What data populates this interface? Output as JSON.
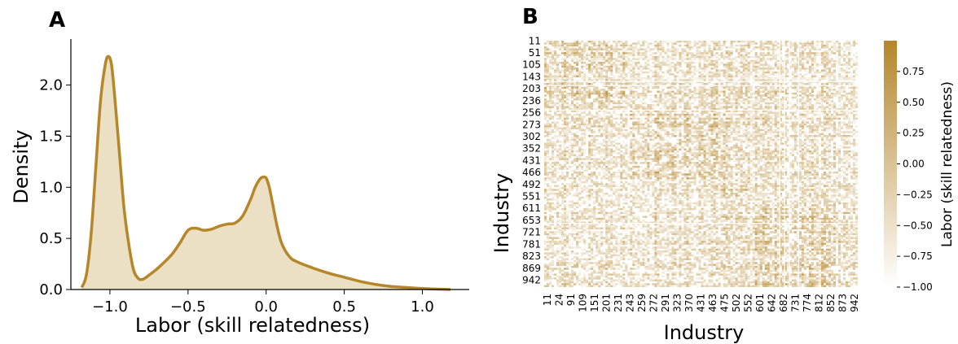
{
  "panels": {
    "a_label": "A",
    "b_label": "B"
  },
  "colors": {
    "accent": "#B5862A",
    "fill": "#EBDFC4",
    "cmap_low": "#FFFFFF",
    "cmap_high": "#B5862A"
  },
  "chart_data": [
    {
      "type": "area",
      "xlabel": "Labor (skill relatedness)",
      "ylabel": "Density",
      "xlim": [
        -1.25,
        1.3
      ],
      "ylim": [
        0,
        2.45
      ],
      "xticks": [
        {
          "value": -1.0,
          "label": "−1.0"
        },
        {
          "value": -0.5,
          "label": "−0.5"
        },
        {
          "value": 0.0,
          "label": "0.0"
        },
        {
          "value": 0.5,
          "label": "0.5"
        },
        {
          "value": 1.0,
          "label": "1.0"
        }
      ],
      "yticks": [
        {
          "value": 0.0,
          "label": "0.0"
        },
        {
          "value": 0.5,
          "label": "0.5"
        },
        {
          "value": 1.0,
          "label": "1.0"
        },
        {
          "value": 1.5,
          "label": "1.5"
        },
        {
          "value": 2.0,
          "label": "2.0"
        }
      ],
      "x": [
        -1.18,
        -1.15,
        -1.12,
        -1.09,
        -1.06,
        -1.03,
        -1.01,
        -0.99,
        -0.97,
        -0.94,
        -0.91,
        -0.88,
        -0.85,
        -0.82,
        -0.79,
        -0.75,
        -0.7,
        -0.65,
        -0.6,
        -0.55,
        -0.5,
        -0.45,
        -0.4,
        -0.35,
        -0.3,
        -0.25,
        -0.2,
        -0.15,
        -0.1,
        -0.07,
        -0.04,
        -0.02,
        0.0,
        0.02,
        0.04,
        0.07,
        0.1,
        0.15,
        0.2,
        0.3,
        0.4,
        0.5,
        0.6,
        0.7,
        0.8,
        0.9,
        1.0,
        1.1,
        1.18
      ],
      "y": [
        0.02,
        0.15,
        0.55,
        1.2,
        1.85,
        2.2,
        2.28,
        2.2,
        1.9,
        1.35,
        0.8,
        0.45,
        0.2,
        0.11,
        0.1,
        0.14,
        0.2,
        0.27,
        0.35,
        0.46,
        0.58,
        0.6,
        0.58,
        0.59,
        0.62,
        0.64,
        0.65,
        0.72,
        0.88,
        1.0,
        1.08,
        1.1,
        1.09,
        1.0,
        0.85,
        0.62,
        0.45,
        0.32,
        0.27,
        0.21,
        0.16,
        0.12,
        0.08,
        0.05,
        0.03,
        0.02,
        0.01,
        0.004,
        0.0
      ]
    },
    {
      "type": "heatmap",
      "xlabel": "Industry",
      "ylabel": "Industry",
      "tick_labels": [
        "11",
        "24",
        "91",
        "109",
        "151",
        "201",
        "231",
        "243",
        "259",
        "272",
        "291",
        "323",
        "370",
        "431",
        "463",
        "475",
        "502",
        "552",
        "601",
        "642",
        "682",
        "731",
        "774",
        "812",
        "852",
        "873",
        "942"
      ],
      "y_tick_labels": [
        "11",
        "51",
        "105",
        "143",
        "203",
        "236",
        "256",
        "273",
        "302",
        "352",
        "431",
        "466",
        "492",
        "551",
        "611",
        "653",
        "721",
        "781",
        "823",
        "869",
        "942"
      ],
      "colorbar": {
        "label": "Labor (skill relatedness)",
        "range": [
          -1.0,
          1.0
        ],
        "ticks": [
          {
            "value": 0.75,
            "label": "0.75"
          },
          {
            "value": 0.5,
            "label": "0.50"
          },
          {
            "value": 0.25,
            "label": "0.25"
          },
          {
            "value": 0.0,
            "label": "0.00"
          },
          {
            "value": -0.25,
            "label": "−0.25"
          },
          {
            "value": -0.5,
            "label": "−0.50"
          },
          {
            "value": -0.75,
            "label": "−0.75"
          },
          {
            "value": -1.0,
            "label": "−1.00"
          }
        ]
      }
    }
  ]
}
